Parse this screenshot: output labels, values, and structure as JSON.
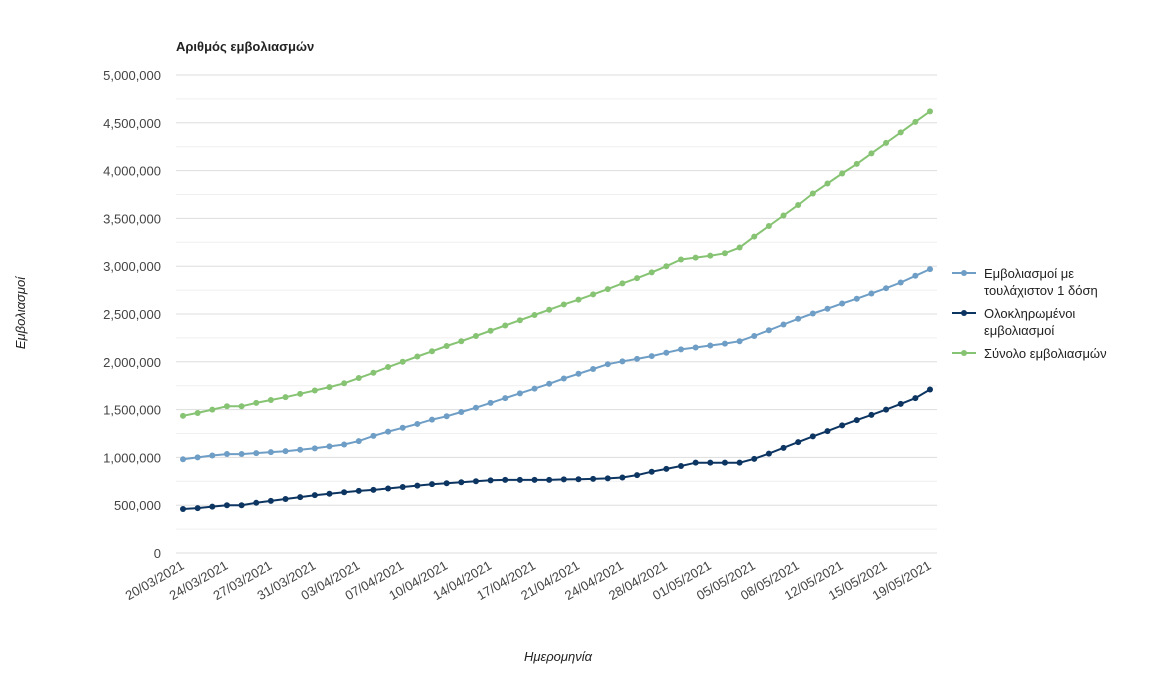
{
  "chart_data": {
    "type": "line",
    "title": "Αριθμός εμβολιασμών",
    "xlabel": "Ημερομηνία",
    "ylabel": "Εμβολιασμοί",
    "ylim": [
      0,
      5000000
    ],
    "yticks": [
      "0",
      "500,000",
      "1,000,000",
      "1,500,000",
      "2,000,000",
      "2,500,000",
      "3,000,000",
      "3,500,000",
      "4,000,000",
      "4,500,000",
      "5,000,000"
    ],
    "ytick_values": [
      0,
      500000,
      1000000,
      1500000,
      2000000,
      2500000,
      3000000,
      3500000,
      4000000,
      4500000,
      5000000
    ],
    "x_tick_labels": [
      "20/03/2021",
      "24/03/2021",
      "27/03/2021",
      "31/03/2021",
      "03/04/2021",
      "07/04/2021",
      "10/04/2021",
      "14/04/2021",
      "17/04/2021",
      "21/04/2021",
      "24/04/2021",
      "28/04/2021",
      "01/05/2021",
      "05/05/2021",
      "08/05/2021",
      "12/05/2021",
      "15/05/2021",
      "19/05/2021"
    ],
    "n_points": 52,
    "grid": true,
    "legend_position": "right",
    "series": [
      {
        "name": "Εμβολιασμοί με τουλάχιστον 1 δόση",
        "legend_lines": [
          "Εμβολιασμοί με",
          "τουλάχιστον 1 δόση"
        ],
        "color": "#6e9ec6",
        "values": [
          980000,
          1000000,
          1020000,
          1035000,
          1035000,
          1045000,
          1055000,
          1065000,
          1080000,
          1095000,
          1115000,
          1135000,
          1170000,
          1225000,
          1270000,
          1310000,
          1350000,
          1395000,
          1430000,
          1475000,
          1520000,
          1570000,
          1620000,
          1670000,
          1720000,
          1770000,
          1825000,
          1875000,
          1925000,
          1975000,
          2005000,
          2030000,
          2060000,
          2095000,
          2130000,
          2150000,
          2170000,
          2190000,
          2215000,
          2270000,
          2330000,
          2390000,
          2450000,
          2505000,
          2555000,
          2610000,
          2660000,
          2715000,
          2770000,
          2830000,
          2900000,
          2970000
        ]
      },
      {
        "name": "Ολοκληρωμένοι εμβολιασμοί",
        "legend_lines": [
          "Ολοκληρωμένοι",
          "εμβολιασμοί"
        ],
        "color": "#0d3562",
        "values": [
          460000,
          470000,
          485000,
          500000,
          500000,
          525000,
          545000,
          565000,
          585000,
          605000,
          620000,
          635000,
          650000,
          660000,
          675000,
          690000,
          705000,
          720000,
          730000,
          740000,
          750000,
          760000,
          765000,
          765000,
          765000,
          765000,
          770000,
          772000,
          775000,
          780000,
          790000,
          815000,
          850000,
          880000,
          910000,
          945000,
          945000,
          945000,
          945000,
          985000,
          1040000,
          1100000,
          1160000,
          1220000,
          1275000,
          1335000,
          1390000,
          1445000,
          1500000,
          1560000,
          1620000,
          1710000
        ]
      },
      {
        "name": "Σύνολο εμβολιασμών",
        "legend_lines": [
          "Σύνολο εμβολιασμών"
        ],
        "color": "#86c373",
        "values": [
          1435000,
          1465000,
          1500000,
          1535000,
          1535000,
          1570000,
          1600000,
          1630000,
          1665000,
          1700000,
          1735000,
          1775000,
          1830000,
          1885000,
          1945000,
          2000000,
          2055000,
          2110000,
          2165000,
          2215000,
          2270000,
          2325000,
          2380000,
          2435000,
          2490000,
          2545000,
          2600000,
          2650000,
          2705000,
          2760000,
          2820000,
          2875000,
          2935000,
          3000000,
          3070000,
          3090000,
          3110000,
          3135000,
          3195000,
          3310000,
          3420000,
          3530000,
          3640000,
          3760000,
          3865000,
          3970000,
          4070000,
          4180000,
          4290000,
          4400000,
          4510000,
          4620000
        ]
      }
    ]
  }
}
